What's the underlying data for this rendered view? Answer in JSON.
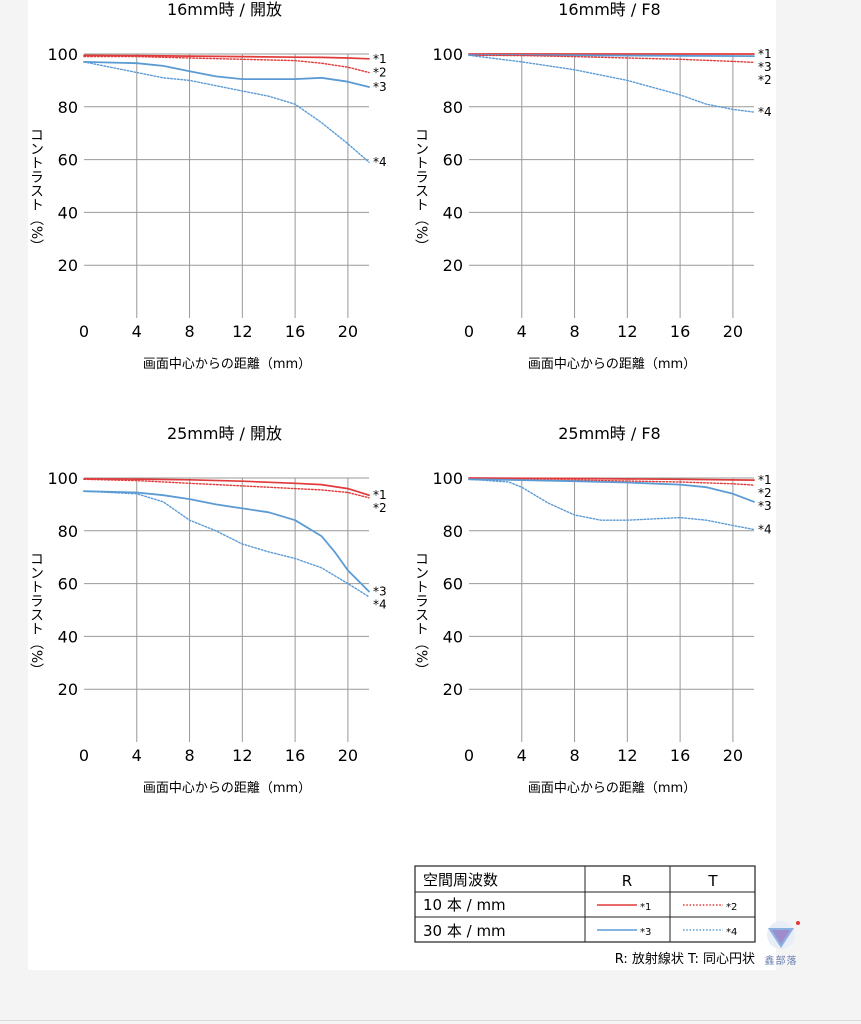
{
  "colors": {
    "red": "#e13a3a",
    "blue": "#5b9bd5",
    "grid": "#999999",
    "text": "#111111"
  },
  "chart_data": [
    {
      "type": "line",
      "title": "16mm時 / 開放",
      "xlabel": "画面中心からの距離（mm）",
      "ylabel": "コントラスト（%）",
      "xlim": [
        0,
        21.6
      ],
      "ylim": [
        0,
        100
      ],
      "xticks": [
        "0",
        "4",
        "8",
        "12",
        "16",
        "20"
      ],
      "yticks": [
        "20",
        "40",
        "60",
        "80",
        "100"
      ],
      "series": [
        {
          "name": "*1",
          "style": "r-solid",
          "points": [
            [
              0,
              99.5
            ],
            [
              4,
              99.4
            ],
            [
              8,
              99.2
            ],
            [
              12,
              99
            ],
            [
              16,
              98.8
            ],
            [
              18,
              98.7
            ],
            [
              20,
              98.5
            ],
            [
              21.6,
              98.2
            ]
          ]
        },
        {
          "name": "*2",
          "style": "r-dot",
          "points": [
            [
              0,
              99
            ],
            [
              4,
              99
            ],
            [
              8,
              98.5
            ],
            [
              12,
              98
            ],
            [
              16,
              97.5
            ],
            [
              18,
              96.5
            ],
            [
              20,
              95
            ],
            [
              21.6,
              93
            ]
          ]
        },
        {
          "name": "*3",
          "style": "b-solid",
          "points": [
            [
              0,
              97
            ],
            [
              4,
              96.5
            ],
            [
              6,
              95.5
            ],
            [
              8,
              93.5
            ],
            [
              10,
              91.5
            ],
            [
              12,
              90.5
            ],
            [
              14,
              90.5
            ],
            [
              16,
              90.5
            ],
            [
              18,
              91
            ],
            [
              20,
              89.5
            ],
            [
              21.6,
              87.5
            ]
          ]
        },
        {
          "name": "*4",
          "style": "b-dot",
          "points": [
            [
              0,
              97
            ],
            [
              2,
              95
            ],
            [
              4,
              93
            ],
            [
              6,
              91
            ],
            [
              8,
              90
            ],
            [
              10,
              88
            ],
            [
              12,
              86
            ],
            [
              14,
              84
            ],
            [
              16,
              81
            ],
            [
              18,
              74
            ],
            [
              20,
              66
            ],
            [
              21.6,
              59
            ]
          ]
        }
      ]
    },
    {
      "type": "line",
      "title": "16mm時 / F8",
      "xlabel": "画面中心からの距離（mm）",
      "ylabel": "コントラスト（%）",
      "xlim": [
        0,
        21.6
      ],
      "ylim": [
        0,
        100
      ],
      "xticks": [
        "0",
        "4",
        "8",
        "12",
        "16",
        "20"
      ],
      "yticks": [
        "20",
        "40",
        "60",
        "80",
        "100"
      ],
      "series": [
        {
          "name": "*1",
          "style": "r-solid",
          "points": [
            [
              0,
              100
            ],
            [
              8,
              100
            ],
            [
              16,
              100
            ],
            [
              21.6,
              100
            ]
          ]
        },
        {
          "name": "*3",
          "style": "b-solid",
          "points": [
            [
              0,
              99.7
            ],
            [
              8,
              99.5
            ],
            [
              16,
              99.3
            ],
            [
              21.6,
              99.2
            ]
          ]
        },
        {
          "name": "*2",
          "style": "r-dot",
          "points": [
            [
              0,
              99.5
            ],
            [
              4,
              99.4
            ],
            [
              8,
              99
            ],
            [
              12,
              98.5
            ],
            [
              16,
              98
            ],
            [
              20,
              97.2
            ],
            [
              21.6,
              96.8
            ]
          ]
        },
        {
          "name": "*4",
          "style": "b-dot",
          "points": [
            [
              0,
              99.5
            ],
            [
              4,
              97
            ],
            [
              8,
              94
            ],
            [
              12,
              90
            ],
            [
              16,
              84.5
            ],
            [
              18,
              81
            ],
            [
              20,
              79
            ],
            [
              21.6,
              78
            ]
          ]
        }
      ]
    },
    {
      "type": "line",
      "title": "25mm時 / 開放",
      "xlabel": "画面中心からの距離（mm）",
      "ylabel": "コントラスト（%）",
      "xlim": [
        0,
        21.6
      ],
      "ylim": [
        0,
        100
      ],
      "xticks": [
        "0",
        "4",
        "8",
        "12",
        "16",
        "20"
      ],
      "yticks": [
        "20",
        "40",
        "60",
        "80",
        "100"
      ],
      "series": [
        {
          "name": "*1",
          "style": "r-solid",
          "points": [
            [
              0,
              99.7
            ],
            [
              4,
              99.6
            ],
            [
              8,
              99.3
            ],
            [
              12,
              98.8
            ],
            [
              16,
              98
            ],
            [
              18,
              97.5
            ],
            [
              20,
              96
            ],
            [
              21.6,
              93.5
            ]
          ]
        },
        {
          "name": "*2",
          "style": "r-dot",
          "points": [
            [
              0,
              99.5
            ],
            [
              4,
              99
            ],
            [
              8,
              98
            ],
            [
              12,
              97
            ],
            [
              16,
              96
            ],
            [
              18,
              95.5
            ],
            [
              20,
              94.5
            ],
            [
              21.6,
              92.5
            ]
          ]
        },
        {
          "name": "*3",
          "style": "b-solid",
          "points": [
            [
              0,
              95
            ],
            [
              4,
              94.5
            ],
            [
              6,
              93.5
            ],
            [
              8,
              92
            ],
            [
              10,
              90
            ],
            [
              12,
              88.5
            ],
            [
              14,
              87
            ],
            [
              16,
              84
            ],
            [
              18,
              78
            ],
            [
              19,
              72
            ],
            [
              20,
              65
            ],
            [
              21.6,
              57
            ]
          ]
        },
        {
          "name": "*4",
          "style": "b-dot",
          "points": [
            [
              0,
              95
            ],
            [
              4,
              94
            ],
            [
              6,
              91
            ],
            [
              8,
              84
            ],
            [
              10,
              80
            ],
            [
              12,
              75
            ],
            [
              14,
              72
            ],
            [
              16,
              69.5
            ],
            [
              18,
              66
            ],
            [
              20,
              60
            ],
            [
              21.6,
              55
            ]
          ]
        }
      ]
    },
    {
      "type": "line",
      "title": "25mm時 / F8",
      "xlabel": "画面中心からの距離（mm）",
      "ylabel": "コントラスト（%）",
      "xlim": [
        0,
        21.6
      ],
      "ylim": [
        0,
        100
      ],
      "xticks": [
        "0",
        "4",
        "8",
        "12",
        "16",
        "20"
      ],
      "yticks": [
        "20",
        "40",
        "60",
        "80",
        "100"
      ],
      "series": [
        {
          "name": "*1",
          "style": "r-solid",
          "points": [
            [
              0,
              100
            ],
            [
              8,
              99.8
            ],
            [
              16,
              99.5
            ],
            [
              21.6,
              99.2
            ]
          ]
        },
        {
          "name": "*2",
          "style": "r-dot",
          "points": [
            [
              0,
              99.6
            ],
            [
              8,
              99.2
            ],
            [
              16,
              98.5
            ],
            [
              20,
              97.8
            ],
            [
              21.6,
              97.3
            ]
          ]
        },
        {
          "name": "*3",
          "style": "b-solid",
          "points": [
            [
              0,
              99.5
            ],
            [
              4,
              99.2
            ],
            [
              8,
              98.8
            ],
            [
              12,
              98.3
            ],
            [
              16,
              97.5
            ],
            [
              18,
              96.5
            ],
            [
              20,
              94
            ],
            [
              21.6,
              91
            ]
          ]
        },
        {
          "name": "*4",
          "style": "b-dot",
          "points": [
            [
              0,
              99.5
            ],
            [
              3,
              98.5
            ],
            [
              4,
              96.5
            ],
            [
              6,
              90.5
            ],
            [
              8,
              86
            ],
            [
              10,
              84
            ],
            [
              12,
              84
            ],
            [
              14,
              84.5
            ],
            [
              16,
              85
            ],
            [
              18,
              84
            ],
            [
              20,
              82
            ],
            [
              21.6,
              80.5
            ]
          ]
        }
      ]
    }
  ],
  "legend_table": {
    "header": [
      "空間周波数",
      "R",
      "T"
    ],
    "rows": [
      {
        "label": "10 本 / mm",
        "r_mark": "*1",
        "t_mark": "*2",
        "r_style": "r-solid",
        "t_style": "r-dot"
      },
      {
        "label": "30 本 / mm",
        "r_mark": "*3",
        "t_mark": "*4",
        "r_style": "b-solid",
        "t_style": "b-dot"
      }
    ],
    "note": "R: 放射線状  T: 同心円状"
  },
  "watermark": {
    "text": "鑫部落",
    "icon": "tripod-logo-icon"
  }
}
